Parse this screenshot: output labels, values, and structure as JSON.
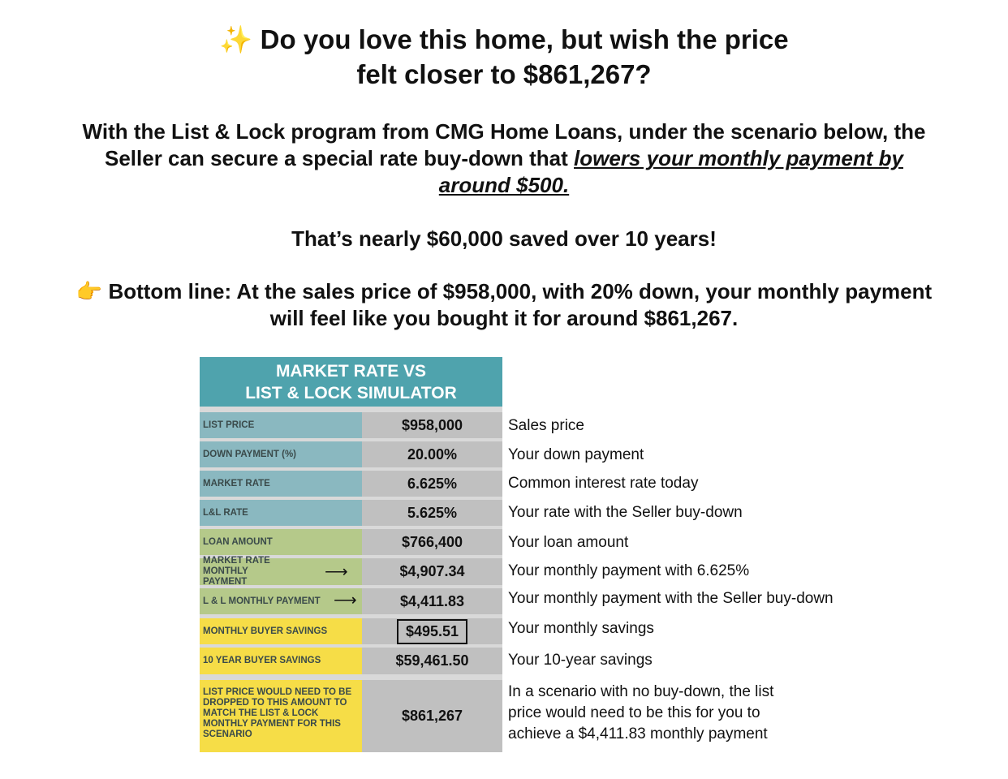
{
  "headline": {
    "icon": "sparkles-icon",
    "line1": "Do you love this home, but wish the price",
    "line2": "felt closer to $861,267?"
  },
  "intro": {
    "part1": "With the List & Lock program from CMG Home Loans, under the scenario below, the",
    "part2": "Seller can secure a special rate buy-down that",
    "emphasis1": "lowers your monthly payment by",
    "emphasis2": "around $500."
  },
  "savings_line": "That’s nearly $60,000 saved over 10 years!",
  "bottom_line": {
    "icon": "pointing-hand-icon",
    "line1": "Bottom line: At the sales price of $958,000, with 20% down, your monthly payment",
    "line2": "will feel like you bought it for around $861,267."
  },
  "simulator": {
    "title_line1": "MARKET RATE VS",
    "title_line2": "LIST & LOCK SIMULATOR",
    "colors": {
      "header": "#4fa3ad",
      "blue": "#8ab8c0",
      "green": "#b5c98a",
      "yellow": "#f6dd47",
      "value": "#c0c0c0"
    },
    "rows": [
      {
        "label": "LIST PRICE",
        "value": "$958,000",
        "desc": "Sales price"
      },
      {
        "label": "DOWN PAYMENT (%)",
        "value": "20.00%",
        "desc": "Your down payment"
      },
      {
        "label": "MARKET RATE",
        "value": "6.625%",
        "desc": "Common interest rate today"
      },
      {
        "label": "L&L RATE",
        "value": "5.625%",
        "desc": "Your rate with the Seller buy-down"
      },
      {
        "label": "LOAN AMOUNT",
        "value": "$766,400",
        "desc": "Your loan amount"
      },
      {
        "label": "MARKET RATE MONTHLY PAYMENT",
        "value": "$4,907.34",
        "desc": "Your monthly payment with 6.625%"
      },
      {
        "label": "L & L MONTHLY PAYMENT",
        "value": "$4,411.83",
        "desc": "Your monthly payment with the Seller buy-down"
      },
      {
        "label": "MONTHLY BUYER SAVINGS",
        "value": "$495.51",
        "desc": "Your monthly savings"
      },
      {
        "label": "10 YEAR BUYER SAVINGS",
        "value": "$59,461.50",
        "desc": "Your 10-year savings"
      },
      {
        "label": "LIST PRICE WOULD NEED TO BE DROPPED TO THIS AMOUNT TO MATCH THE LIST & LOCK MONTHLY PAYMENT FOR THIS SCENARIO",
        "value": "$861,267",
        "desc": "In a scenario with no buy-down, the list price would need to be this for you to achieve a $4,411.83 monthly payment"
      }
    ]
  }
}
